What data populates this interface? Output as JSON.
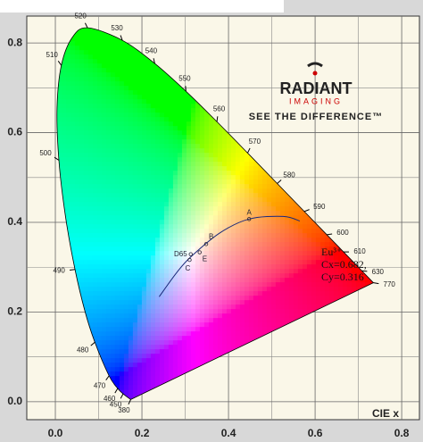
{
  "chart_data": {
    "type": "chromaticity",
    "xlabel": "CIE x",
    "xlim": [
      -0.066,
      0.841
    ],
    "ylim": [
      -0.04,
      0.86
    ],
    "xticks": [
      {
        "value": 0,
        "label": "0.0"
      },
      0.2,
      0.4,
      0.6,
      0.8
    ],
    "yticks": [
      {
        "value": 0,
        "label": "0.0"
      },
      0.2,
      0.4,
      0.6,
      0.8
    ],
    "minor_xticks": [
      0.1,
      0.3,
      0.5,
      0.7
    ],
    "minor_yticks": [
      0.1,
      0.3,
      0.5,
      0.7
    ],
    "grid": true,
    "spectral_locus": {
      "color": "#000000",
      "wavelengths": [
        380,
        450,
        460,
        470,
        480,
        null,
        490,
        null,
        500,
        null,
        510,
        null,
        520,
        530,
        540,
        550,
        560,
        570,
        580,
        590,
        600,
        610,
        630,
        770
      ],
      "x": [
        0.1741,
        0.1566,
        0.144,
        0.1241,
        0.0913,
        0.0687,
        0.0454,
        0.0235,
        0.0082,
        0.0039,
        0.0139,
        0.0389,
        0.0743,
        0.1547,
        0.2296,
        0.3016,
        0.3731,
        0.4441,
        0.5125,
        0.5752,
        0.627,
        0.6658,
        0.7079,
        0.7347
      ],
      "y": [
        0.005,
        0.0177,
        0.0297,
        0.0578,
        0.1327,
        0.2007,
        0.295,
        0.4127,
        0.5384,
        0.6548,
        0.7502,
        0.812,
        0.8338,
        0.8059,
        0.7543,
        0.6923,
        0.6245,
        0.5547,
        0.4866,
        0.4242,
        0.3725,
        0.334,
        0.292,
        0.2653
      ]
    },
    "planckian_locus": {
      "color": "#1a2a7a",
      "x": [
        0.2399,
        0.2807,
        0.3135,
        0.3805,
        0.4476,
        0.5267,
        0.5646
      ],
      "y": [
        0.2342,
        0.2884,
        0.3236,
        0.3768,
        0.4074,
        0.4133,
        0.4029
      ]
    },
    "white_points": {
      "labels": [
        "A",
        "B",
        "C",
        "D65",
        "E"
      ],
      "x": [
        0.4476,
        0.3484,
        0.3101,
        0.3127,
        0.3333
      ],
      "y": [
        0.4074,
        0.3516,
        0.3162,
        0.329,
        0.3333
      ]
    },
    "annotation": {
      "lines": [
        "Eu³⁺",
        "Cx=0.682,",
        "Cy=0.316"
      ]
    }
  },
  "logo": {
    "name": "RADIANT",
    "sub": "IMAGING",
    "tagline": "SEE THE DIFFERENCE™"
  }
}
